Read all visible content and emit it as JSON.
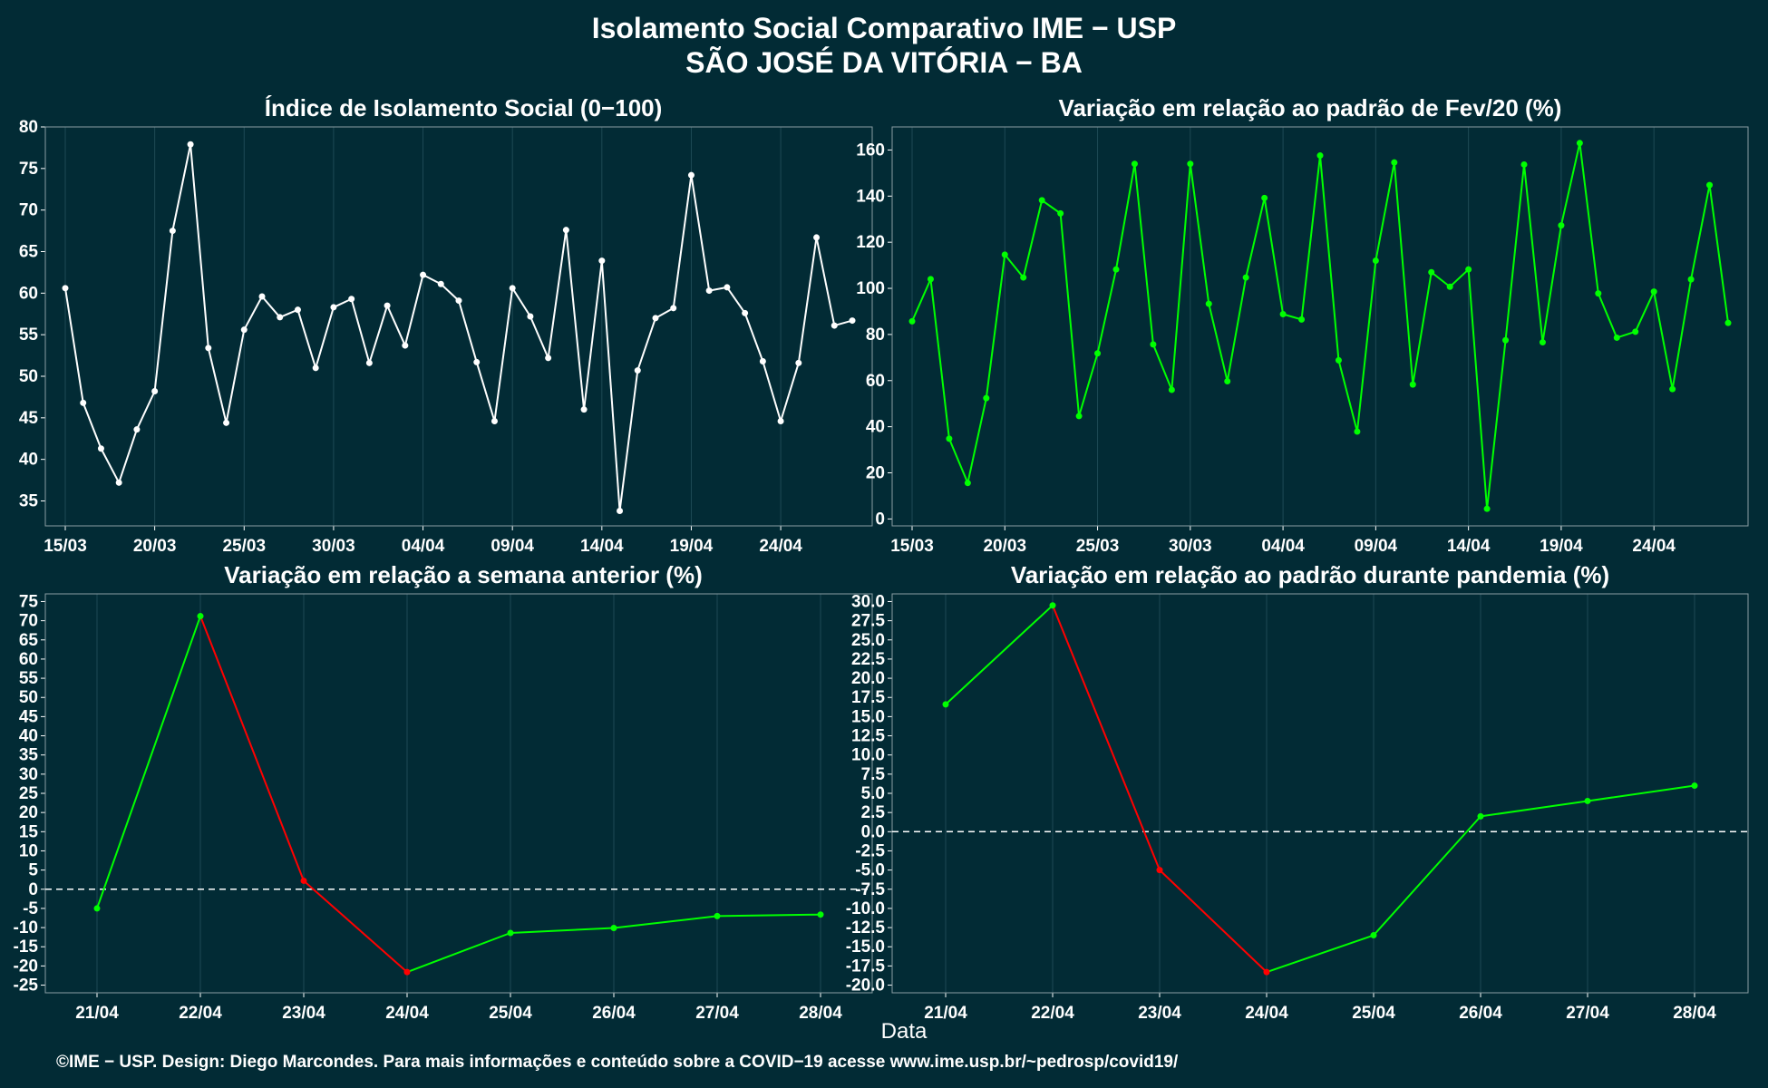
{
  "title_line1": "Isolamento Social Comparativo IME − USP",
  "title_line2": "SÃO JOSÉ DA VITÓRIA − BA",
  "xlabel": "Data",
  "caption": "©IME − USP. Design: Diego Marcondes. Para mais informações e conteúdo sobre a COVID−19 acesse www.ime.usp.br/~pedrosp/covid19/",
  "colors": {
    "background": "#022b35",
    "white": "#ffffff",
    "green": "#00ff00",
    "red": "#ff0000",
    "grid": "#1e4a55"
  },
  "chart_data": [
    {
      "type": "line",
      "title": "Índice de Isolamento Social (0−100)",
      "x_start": "15/03",
      "x_tick_labels": [
        "15/03",
        "20/03",
        "25/03",
        "30/03",
        "04/04",
        "09/04",
        "14/04",
        "19/04",
        "24/04"
      ],
      "ylim": [
        32,
        80
      ],
      "y_ticks": [
        35,
        40,
        45,
        50,
        55,
        60,
        65,
        70,
        75,
        80
      ],
      "values": [
        60.6,
        46.8,
        41.3,
        37.2,
        43.6,
        48.2,
        67.5,
        77.9,
        53.4,
        44.4,
        55.6,
        59.6,
        57.1,
        58.0,
        51.0,
        58.3,
        59.3,
        51.6,
        58.5,
        53.7,
        62.2,
        61.1,
        59.1,
        51.7,
        44.6,
        60.6,
        57.2,
        52.2,
        67.6,
        46.0,
        63.9,
        33.8,
        50.7,
        57.0,
        58.2,
        74.2,
        60.3,
        60.7,
        57.6,
        51.8,
        44.6,
        51.6,
        66.7,
        56.1,
        56.7
      ],
      "color": "#ffffff"
    },
    {
      "type": "line",
      "title": "Variação em relação ao padrão de Fev/20 (%)",
      "x_start": "15/03",
      "x_tick_labels": [
        "15/03",
        "20/03",
        "25/03",
        "30/03",
        "04/04",
        "09/04",
        "14/04",
        "19/04",
        "24/04"
      ],
      "ylim": [
        -3,
        170
      ],
      "y_ticks": [
        0,
        20,
        40,
        60,
        80,
        100,
        120,
        140,
        160
      ],
      "values": [
        85.7,
        104.0,
        34.8,
        15.6,
        52.4,
        114.6,
        104.7,
        138.2,
        132.5,
        44.6,
        71.8,
        108.2,
        154.0,
        75.7,
        56.0,
        154.0,
        93.3,
        59.7,
        104.7,
        139.2,
        88.8,
        86.5,
        157.6,
        68.8,
        37.9,
        112.0,
        154.6,
        58.3,
        107.0,
        100.7,
        108.2,
        4.4,
        77.5,
        153.7,
        76.6,
        127.3,
        163.0,
        97.8,
        78.6,
        81.2,
        98.6,
        56.3,
        103.9,
        144.8,
        85.0
      ],
      "color": "#00ff00"
    },
    {
      "type": "line",
      "title": "Variação em relação a semana anterior (%)",
      "categories": [
        "21/04",
        "22/04",
        "23/04",
        "24/04",
        "25/04",
        "26/04",
        "27/04",
        "28/04"
      ],
      "ylim": [
        -27,
        77
      ],
      "y_ticks": [
        -25,
        -20,
        -15,
        -10,
        -5,
        0,
        5,
        10,
        15,
        20,
        25,
        30,
        35,
        40,
        45,
        50,
        55,
        60,
        65,
        70,
        75
      ],
      "values": [
        -5.0,
        71.2,
        2.2,
        -21.6,
        -11.4,
        -10.1,
        -7.0,
        -6.6
      ],
      "reference_line": 0
    },
    {
      "type": "line",
      "title": "Variação em relação ao padrão durante pandemia (%)",
      "categories": [
        "21/04",
        "22/04",
        "23/04",
        "24/04",
        "25/04",
        "26/04",
        "27/04",
        "28/04"
      ],
      "ylim": [
        -21,
        31
      ],
      "y_ticks": [
        -20.0,
        -17.5,
        -15.0,
        -12.5,
        -10.0,
        -7.5,
        -5.0,
        -2.5,
        0.0,
        2.5,
        5.0,
        7.5,
        10.0,
        12.5,
        15.0,
        17.5,
        20.0,
        22.5,
        25.0,
        27.5,
        30.0
      ],
      "values": [
        16.6,
        29.5,
        -5.0,
        -18.3,
        -13.5,
        2.0,
        4.0,
        6.0
      ],
      "reference_line": 0
    }
  ]
}
